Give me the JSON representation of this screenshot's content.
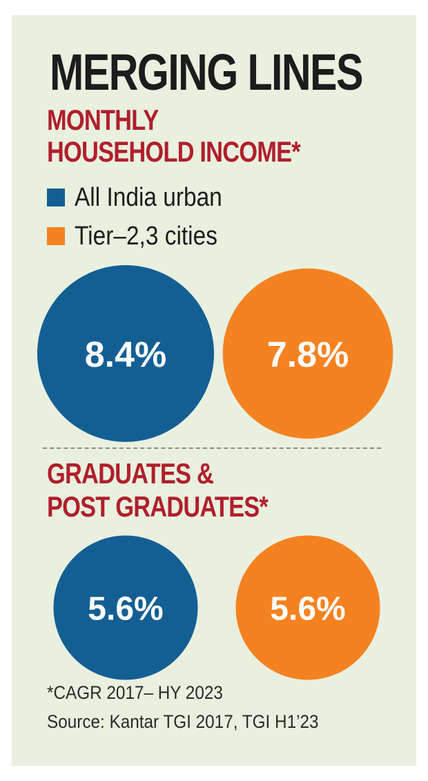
{
  "title": "MERGING LINES",
  "colors": {
    "all_india": "#135f94",
    "tier": "#f58220",
    "red": "#b01f2b",
    "bg": "#e9f0df"
  },
  "chart_data": [
    {
      "type": "bubble",
      "title": "MONTHLY HOUSEHOLD INCOME*",
      "title_lines": [
        "MONTHLY",
        "HOUSEHOLD INCOME*"
      ],
      "categories": [
        "All India urban",
        "Tier-2,3 cities"
      ],
      "values": [
        8.4,
        7.8
      ],
      "labels": [
        "8.4%",
        "7.8%"
      ],
      "unit": "%"
    },
    {
      "type": "bubble",
      "title": "GRADUATES & POST GRADUATES*",
      "title_lines": [
        "GRADUATES &",
        "POST GRADUATES*"
      ],
      "categories": [
        "All India urban",
        "Tier-2,3 cities"
      ],
      "values": [
        5.6,
        5.6
      ],
      "labels": [
        "5.6%",
        "5.6%"
      ],
      "unit": "%"
    }
  ],
  "legend": [
    {
      "label": "All India urban",
      "color": "#135f94"
    },
    {
      "label": "Tier–2,3 cities",
      "color": "#f58220"
    }
  ],
  "footnote": {
    "note": "*CAGR 2017– HY 2023",
    "source": "Source: Kantar TGI 2017, TGI H1’23"
  }
}
